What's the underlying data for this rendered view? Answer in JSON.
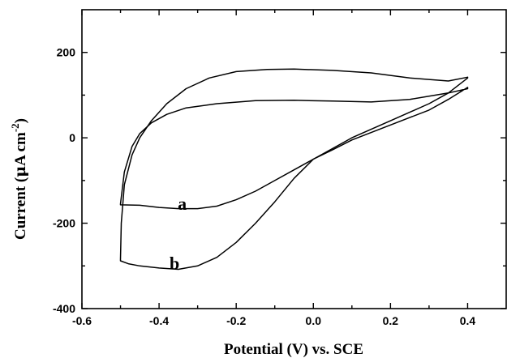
{
  "chart_data": {
    "type": "line",
    "xlabel": "Potential (V) vs. SCE",
    "ylabel_main": "Current (",
    "ylabel_mu": "μ",
    "ylabel_unit": "A cm",
    "ylabel_exp": "-2",
    "ylabel_close": ")",
    "xlim": [
      -0.6,
      0.5
    ],
    "ylim": [
      -400,
      300
    ],
    "x_ticks": [
      -0.6,
      -0.4,
      -0.2,
      0.0,
      0.2,
      0.4
    ],
    "x_tick_labels": [
      "-0.6",
      "-0.4",
      "-0.2",
      "0.0",
      "0.2",
      "0.4"
    ],
    "y_ticks": [
      -400,
      -200,
      0,
      200
    ],
    "y_tick_labels": [
      "-400",
      "-200",
      "0",
      "200"
    ],
    "grid": false,
    "series": [
      {
        "label": "a",
        "label_pos": [
          -0.34,
          -155
        ],
        "x": [
          -0.5,
          -0.49,
          -0.47,
          -0.45,
          -0.42,
          -0.38,
          -0.33,
          -0.25,
          -0.15,
          -0.05,
          0.05,
          0.15,
          0.25,
          0.35,
          0.4,
          0.4,
          0.35,
          0.3,
          0.2,
          0.1,
          0.05,
          0.0,
          -0.05,
          -0.1,
          -0.15,
          -0.2,
          -0.25,
          -0.3,
          -0.35,
          -0.4,
          -0.45,
          -0.5,
          -0.5
        ],
        "y": [
          -155,
          -80,
          -20,
          10,
          35,
          55,
          70,
          80,
          87,
          88,
          86,
          84,
          90,
          105,
          115,
          118,
          90,
          65,
          30,
          -5,
          -28,
          -50,
          -75,
          -100,
          -125,
          -145,
          -160,
          -166,
          -166,
          -163,
          -158,
          -157,
          -155
        ]
      },
      {
        "label": "b",
        "label_pos": [
          -0.36,
          -295
        ],
        "x": [
          -0.5,
          -0.498,
          -0.49,
          -0.47,
          -0.45,
          -0.42,
          -0.38,
          -0.33,
          -0.27,
          -0.2,
          -0.12,
          -0.05,
          0.05,
          0.15,
          0.25,
          0.35,
          0.4,
          0.4,
          0.35,
          0.3,
          0.2,
          0.1,
          0.0,
          -0.05,
          -0.1,
          -0.15,
          -0.2,
          -0.25,
          -0.3,
          -0.35,
          -0.4,
          -0.45,
          -0.48,
          -0.5,
          -0.5
        ],
        "y": [
          -285,
          -200,
          -110,
          -40,
          0,
          40,
          80,
          115,
          140,
          155,
          160,
          161,
          158,
          152,
          140,
          133,
          142,
          140,
          105,
          80,
          40,
          0,
          -50,
          -95,
          -150,
          -200,
          -245,
          -280,
          -300,
          -308,
          -305,
          -300,
          -295,
          -288,
          -285
        ]
      }
    ]
  }
}
